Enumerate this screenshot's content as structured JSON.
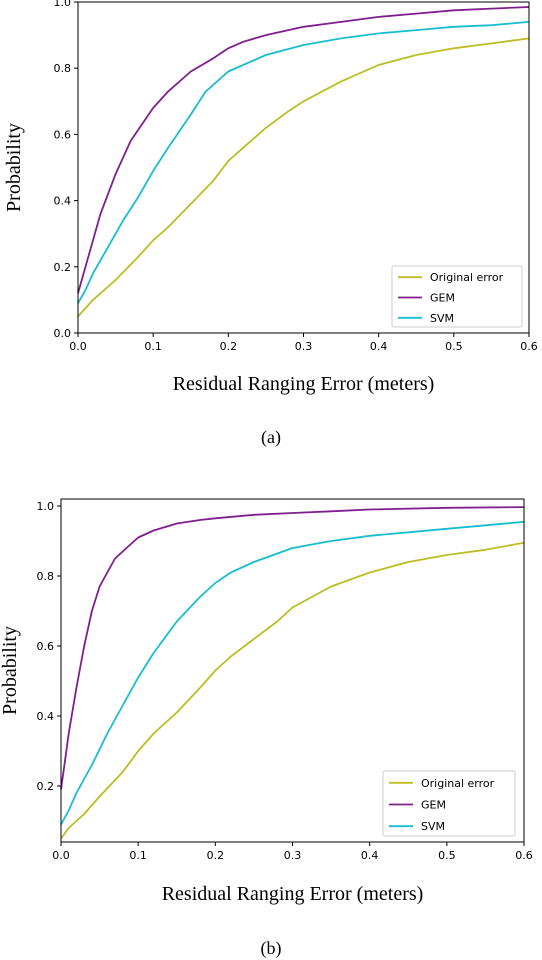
{
  "chart_data": [
    {
      "type": "line",
      "caption": "(a)",
      "xlabel": "Residual Ranging Error (meters)",
      "ylabel": "Probability",
      "xlim": [
        0,
        0.6
      ],
      "ylim": [
        0,
        1.0
      ],
      "xticks": [
        "0.0",
        "0.1",
        "0.2",
        "0.3",
        "0.4",
        "0.5",
        "0.6"
      ],
      "yticks": [
        "0.0",
        "0.2",
        "0.4",
        "0.6",
        "0.8",
        "1.0"
      ],
      "legend_position": "lower-right",
      "grid": false,
      "series": [
        {
          "name": "Original error",
          "color": "#bcbd22",
          "x": [
            0,
            0.02,
            0.05,
            0.08,
            0.1,
            0.12,
            0.15,
            0.18,
            0.2,
            0.22,
            0.25,
            0.28,
            0.3,
            0.35,
            0.4,
            0.45,
            0.5,
            0.55,
            0.6
          ],
          "y": [
            0.05,
            0.1,
            0.16,
            0.23,
            0.28,
            0.32,
            0.39,
            0.46,
            0.52,
            0.56,
            0.62,
            0.67,
            0.7,
            0.76,
            0.81,
            0.84,
            0.86,
            0.875,
            0.89
          ]
        },
        {
          "name": "GEM",
          "color": "#7f1f8e",
          "x": [
            0,
            0.01,
            0.02,
            0.03,
            0.05,
            0.07,
            0.1,
            0.12,
            0.15,
            0.18,
            0.2,
            0.22,
            0.25,
            0.3,
            0.35,
            0.4,
            0.45,
            0.5,
            0.55,
            0.6
          ],
          "y": [
            0.12,
            0.2,
            0.28,
            0.36,
            0.48,
            0.58,
            0.68,
            0.73,
            0.79,
            0.83,
            0.86,
            0.88,
            0.9,
            0.925,
            0.94,
            0.955,
            0.965,
            0.975,
            0.98,
            0.985
          ]
        },
        {
          "name": "SVM",
          "color": "#17becf",
          "x": [
            0,
            0.01,
            0.02,
            0.04,
            0.06,
            0.08,
            0.1,
            0.12,
            0.15,
            0.17,
            0.2,
            0.25,
            0.3,
            0.35,
            0.4,
            0.45,
            0.5,
            0.55,
            0.6
          ],
          "y": [
            0.09,
            0.13,
            0.18,
            0.26,
            0.34,
            0.41,
            0.49,
            0.56,
            0.66,
            0.73,
            0.79,
            0.84,
            0.87,
            0.89,
            0.905,
            0.915,
            0.925,
            0.93,
            0.94
          ]
        }
      ]
    },
    {
      "type": "line",
      "caption": "(b)",
      "xlabel": "Residual Ranging Error (meters)",
      "ylabel": "Probability",
      "xlim": [
        0,
        0.6
      ],
      "ylim": [
        0.04,
        1.02
      ],
      "xticks": [
        "0.0",
        "0.1",
        "0.2",
        "0.3",
        "0.4",
        "0.5",
        "0.6"
      ],
      "yticks": [
        "0.2",
        "0.4",
        "0.6",
        "0.8",
        "1.0"
      ],
      "legend_position": "lower-right",
      "grid": false,
      "series": [
        {
          "name": "Original error",
          "color": "#bcbd22",
          "x": [
            0,
            0.01,
            0.03,
            0.05,
            0.08,
            0.1,
            0.12,
            0.15,
            0.18,
            0.2,
            0.22,
            0.25,
            0.28,
            0.3,
            0.35,
            0.4,
            0.45,
            0.5,
            0.55,
            0.6
          ],
          "y": [
            0.05,
            0.08,
            0.12,
            0.17,
            0.24,
            0.3,
            0.35,
            0.41,
            0.48,
            0.53,
            0.57,
            0.62,
            0.67,
            0.71,
            0.77,
            0.81,
            0.84,
            0.86,
            0.875,
            0.895
          ]
        },
        {
          "name": "GEM",
          "color": "#7f1f8e",
          "x": [
            0,
            0.005,
            0.01,
            0.02,
            0.03,
            0.04,
            0.05,
            0.07,
            0.09,
            0.1,
            0.12,
            0.15,
            0.18,
            0.2,
            0.25,
            0.3,
            0.35,
            0.4,
            0.5,
            0.6
          ],
          "y": [
            0.19,
            0.27,
            0.35,
            0.48,
            0.6,
            0.7,
            0.77,
            0.85,
            0.89,
            0.91,
            0.93,
            0.95,
            0.96,
            0.965,
            0.975,
            0.98,
            0.985,
            0.99,
            0.995,
            0.997
          ]
        },
        {
          "name": "SVM",
          "color": "#17becf",
          "x": [
            0,
            0.01,
            0.02,
            0.04,
            0.06,
            0.08,
            0.1,
            0.12,
            0.15,
            0.18,
            0.2,
            0.22,
            0.25,
            0.3,
            0.35,
            0.4,
            0.45,
            0.5,
            0.55,
            0.6
          ],
          "y": [
            0.09,
            0.13,
            0.18,
            0.26,
            0.35,
            0.43,
            0.51,
            0.58,
            0.67,
            0.74,
            0.78,
            0.81,
            0.84,
            0.88,
            0.9,
            0.915,
            0.925,
            0.935,
            0.945,
            0.955
          ]
        }
      ]
    }
  ]
}
